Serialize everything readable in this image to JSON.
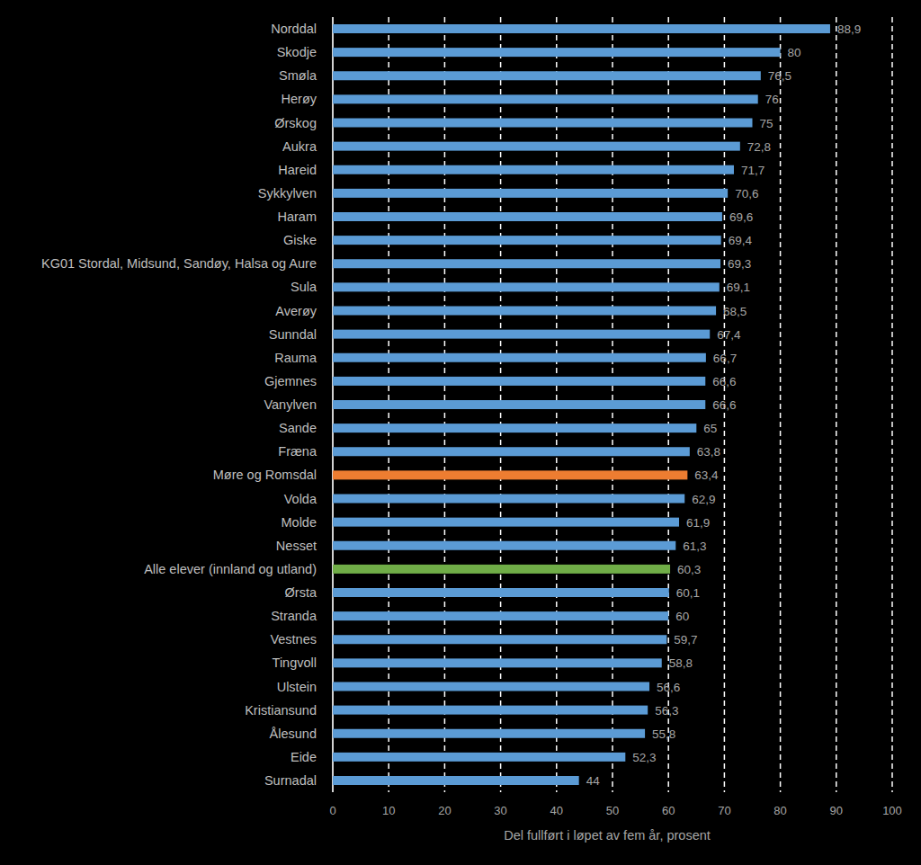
{
  "chart_data": {
    "type": "bar",
    "orientation": "horizontal",
    "x_label": "Del fullført i løpet av fem år, prosent",
    "categories": [
      "Norddal",
      "Skodje",
      "Smøla",
      "Herøy",
      "Ørskog",
      "Aukra",
      "Hareid",
      "Sykkylven",
      "Haram",
      "Giske",
      "KG01 Stordal, Midsund, Sandøy, Halsa og Aure",
      "Sula",
      "Averøy",
      "Sunndal",
      "Rauma",
      "Gjemnes",
      "Vanylven",
      "Sande",
      "Fræna",
      "Møre og Romsdal",
      "Volda",
      "Molde",
      "Nesset",
      "Alle elever (innland og utland)",
      "Ørsta",
      "Stranda",
      "Vestnes",
      "Tingvoll",
      "Ulstein",
      "Kristiansund",
      "Ålesund",
      "Eide",
      "Surnadal"
    ],
    "values": [
      88.9,
      80,
      76.5,
      76,
      75,
      72.8,
      71.7,
      70.6,
      69.6,
      69.4,
      69.3,
      69.1,
      68.5,
      67.4,
      66.7,
      66.6,
      66.6,
      65,
      63.8,
      63.4,
      62.9,
      61.9,
      61.3,
      60.3,
      60.1,
      60,
      59.7,
      58.8,
      56.6,
      56.3,
      55.8,
      52.3,
      44
    ],
    "value_labels": [
      "88,9",
      "80",
      "76,5",
      "76",
      "75",
      "72,8",
      "71,7",
      "70,6",
      "69,6",
      "69,4",
      "69,3",
      "69,1",
      "68,5",
      "67,4",
      "66,7",
      "66,6",
      "66,6",
      "65",
      "63,8",
      "63,4",
      "62,9",
      "61,9",
      "61,3",
      "60,3",
      "60,1",
      "60",
      "59,7",
      "58,8",
      "56,6",
      "56,3",
      "55,8",
      "52,3",
      "44"
    ],
    "colors": [
      "#5b9bd5",
      "#5b9bd5",
      "#5b9bd5",
      "#5b9bd5",
      "#5b9bd5",
      "#5b9bd5",
      "#5b9bd5",
      "#5b9bd5",
      "#5b9bd5",
      "#5b9bd5",
      "#5b9bd5",
      "#5b9bd5",
      "#5b9bd5",
      "#5b9bd5",
      "#5b9bd5",
      "#5b9bd5",
      "#5b9bd5",
      "#5b9bd5",
      "#5b9bd5",
      "#ed7d31",
      "#5b9bd5",
      "#5b9bd5",
      "#5b9bd5",
      "#70ad47",
      "#5b9bd5",
      "#5b9bd5",
      "#5b9bd5",
      "#5b9bd5",
      "#5b9bd5",
      "#5b9bd5",
      "#5b9bd5",
      "#5b9bd5",
      "#5b9bd5"
    ],
    "xlim": [
      0,
      100
    ],
    "xticks": [
      0,
      10,
      20,
      30,
      40,
      50,
      60,
      70,
      80,
      90,
      100
    ],
    "grid": true,
    "data_labels": true
  }
}
